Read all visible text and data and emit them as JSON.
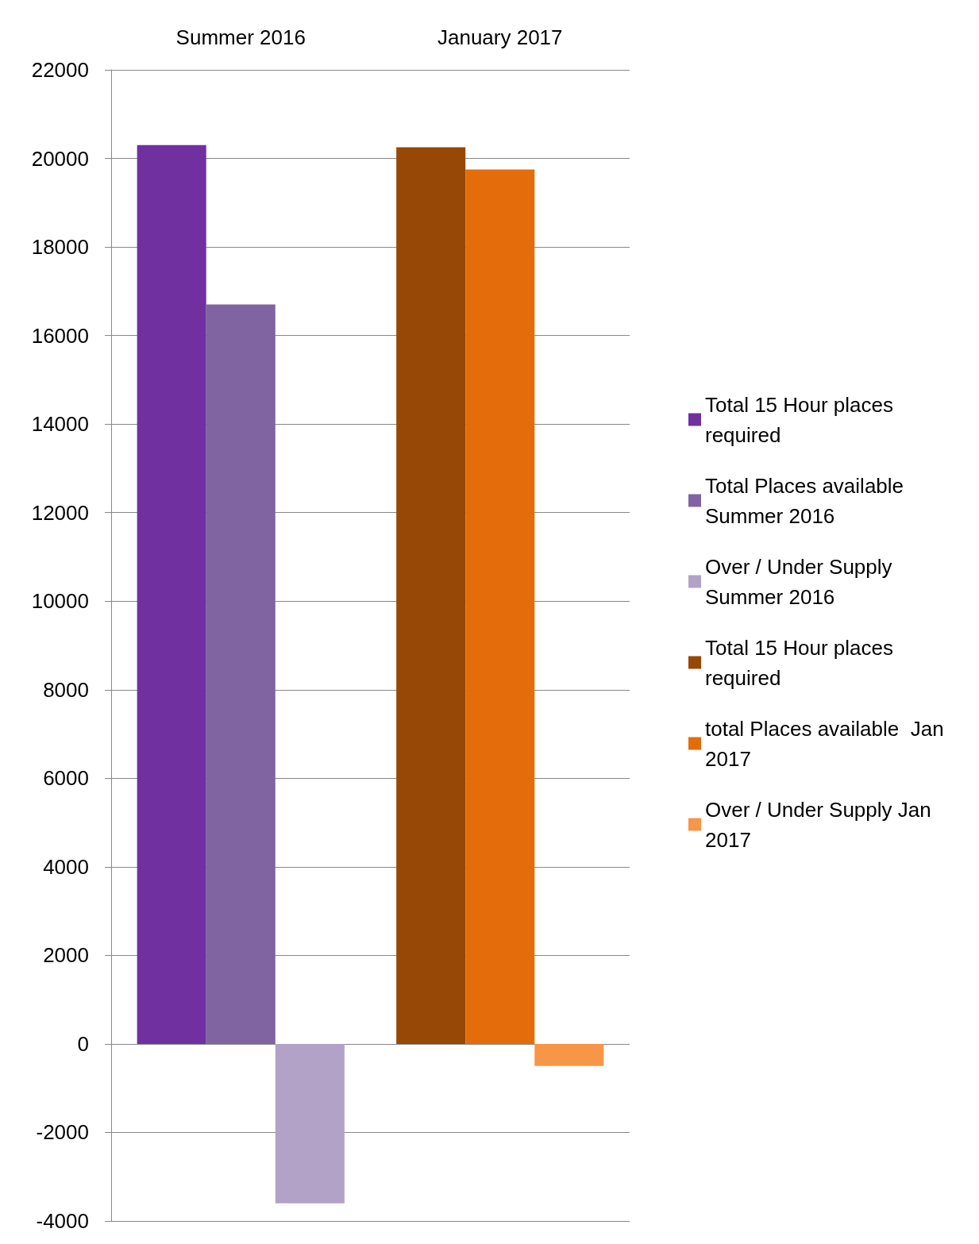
{
  "chart_data": {
    "type": "bar",
    "categories": [
      "Summer 2016",
      "January 2017"
    ],
    "series": [
      {
        "name": "Total 15 Hour places required",
        "color": "#7030a0",
        "values": [
          20300,
          null
        ]
      },
      {
        "name": "Total Places available Summer 2016",
        "color": "#8064a2",
        "values": [
          16700,
          null
        ]
      },
      {
        "name": "Over / Under Supply Summer 2016",
        "color": "#b3a2c7",
        "values": [
          -3600,
          null
        ]
      },
      {
        "name": "Total 15 Hour places required",
        "color": "#974706",
        "values": [
          null,
          20250
        ]
      },
      {
        "name": "total Places available  Jan 2017",
        "color": "#e46c0a",
        "values": [
          null,
          19750
        ]
      },
      {
        "name": "Over / Under Supply Jan 2017",
        "color": "#f79646",
        "values": [
          null,
          -500
        ]
      }
    ],
    "ylim": [
      -4000,
      22000
    ],
    "yticks": [
      -4000,
      -2000,
      0,
      2000,
      4000,
      6000,
      8000,
      10000,
      12000,
      14000,
      16000,
      18000,
      20000,
      22000
    ],
    "grid": "y",
    "legend": "right"
  }
}
